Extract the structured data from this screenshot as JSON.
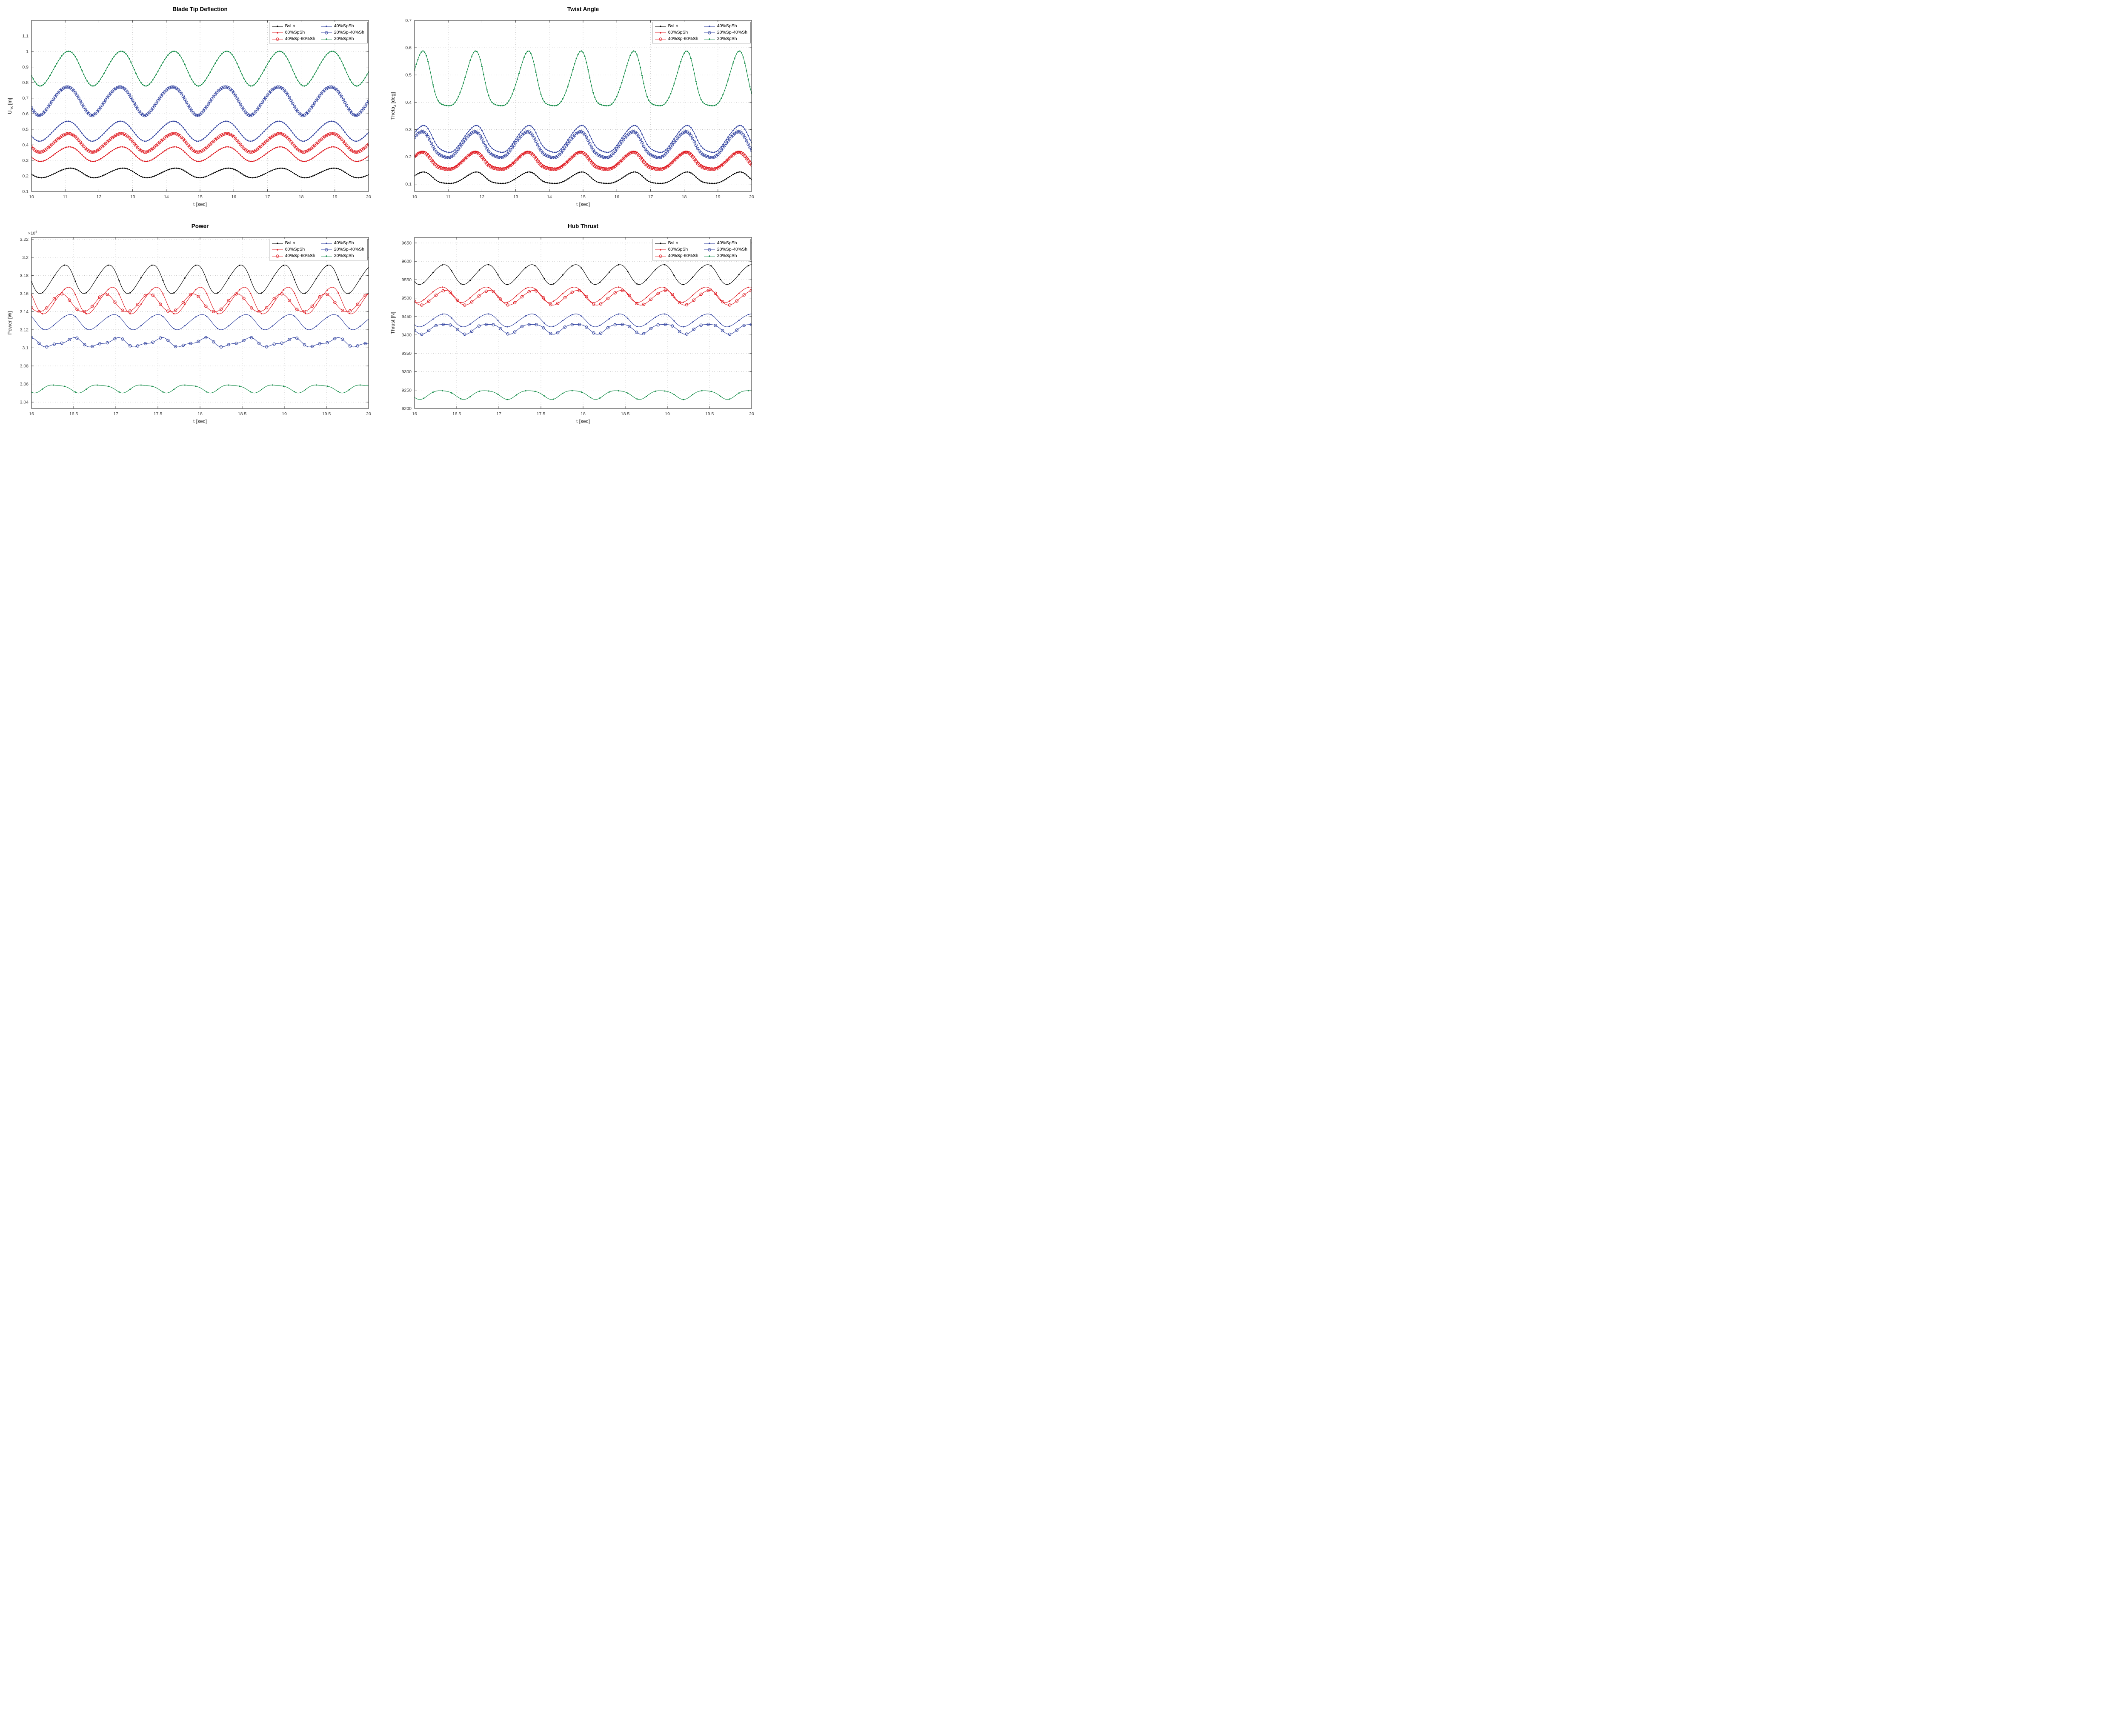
{
  "figure": {
    "background": "#ffffff"
  },
  "palette": {
    "black": "#000000",
    "red": "#e01b22",
    "blue": "#3142a0",
    "green": "#0f8a44"
  },
  "style": {
    "grid_color": "#b3b3b3",
    "axis_color": "#262626",
    "tick_label_color": "#3c3c3c",
    "legend_border": "#8c8c8c"
  },
  "legend_entries_column_major": [
    "BsLn",
    "60%SpSh",
    "40%Sp-60%Sh",
    "40%SpSh",
    "20%Sp-40%Sh",
    "20%SpSh"
  ],
  "waveform_model": "Periodic series reconstructed as y(t) = trough + (peak-trough)*((1+cos(th'))/2)^sharp + ripple*cos(2*th + ripple_phase), where th = 2*pi*(t-t_peak)/period wrapped to [-pi,pi] and th' = th + skew*(1-cos(th)). trough/peak are the values read off the chart; t_peak is the time of a maximum; markers are drawn every marker_dt seconds.",
  "chart_data": [
    {
      "type": "line",
      "title": "Blade Tip Deflection",
      "xlabel": "t [sec]",
      "ylabel": {
        "pre": "U",
        "sub": "hx",
        "post": " [m]"
      },
      "xlim": [
        10,
        20
      ],
      "ylim": [
        0.1,
        1.2
      ],
      "xticks": [
        10,
        11,
        12,
        13,
        14,
        15,
        16,
        17,
        18,
        19,
        20
      ],
      "xtick_labels": [
        "10",
        "11",
        "12",
        "13",
        "14",
        "15",
        "16",
        "17",
        "18",
        "19",
        "20"
      ],
      "yticks": [
        0.1,
        0.2,
        0.3,
        0.4,
        0.5,
        0.6,
        0.7,
        0.8,
        0.9,
        1.0,
        1.1
      ],
      "ytick_labels": [
        "0.1",
        "0.2",
        "0.3",
        "0.4",
        "0.5",
        "0.6",
        "0.7",
        "0.8",
        "0.9",
        "1",
        "1.1"
      ],
      "multiplier": null,
      "grid": true,
      "legend_location": "northeast",
      "series": [
        {
          "name": "BsLn",
          "color": "black",
          "marker": "dot",
          "marker_dt": 0.05,
          "period": 1.565,
          "t_peak": 11.15,
          "trough": 0.188,
          "peak": 0.25,
          "sharp": 1.0,
          "skew": 0.15,
          "ripple": 0,
          "ripple_phase": 0
        },
        {
          "name": "60%SpSh",
          "color": "red",
          "marker": "dot",
          "marker_dt": 0.05,
          "period": 1.565,
          "t_peak": 11.12,
          "trough": 0.293,
          "peak": 0.387,
          "sharp": 1.0,
          "skew": 0.15,
          "ripple": 0,
          "ripple_phase": 0
        },
        {
          "name": "40%Sp-60%Sh",
          "color": "red",
          "marker": "circle",
          "marker_dt": 0.05,
          "period": 1.565,
          "t_peak": 11.1,
          "trough": 0.353,
          "peak": 0.472,
          "sharp": 0.95,
          "skew": 0.15,
          "ripple": 0,
          "ripple_phase": 0
        },
        {
          "name": "40%SpSh",
          "color": "blue",
          "marker": "dot",
          "marker_dt": 0.05,
          "period": 1.565,
          "t_peak": 11.08,
          "trough": 0.423,
          "peak": 0.552,
          "sharp": 0.95,
          "skew": 0.12,
          "ripple": 0,
          "ripple_phase": 0
        },
        {
          "name": "20%Sp-40%Sh",
          "color": "blue",
          "marker": "circle",
          "marker_dt": 0.05,
          "period": 1.565,
          "t_peak": 11.06,
          "trough": 0.588,
          "peak": 0.772,
          "sharp": 0.85,
          "skew": 0.1,
          "ripple": 0,
          "ripple_phase": 0
        },
        {
          "name": "20%SpSh",
          "color": "green",
          "marker": "dot",
          "marker_dt": 0.05,
          "period": 1.565,
          "t_peak": 11.1,
          "trough": 0.778,
          "peak": 1.002,
          "sharp": 0.95,
          "skew": 0.12,
          "ripple": 0,
          "ripple_phase": 0
        }
      ]
    },
    {
      "type": "line",
      "title": "Twist Angle",
      "xlabel": "t [sec]",
      "ylabel": {
        "pre": "Theta",
        "sub": "z",
        "post": " [deg]"
      },
      "xlim": [
        10,
        20
      ],
      "ylim": [
        0.073,
        0.7
      ],
      "xticks": [
        10,
        11,
        12,
        13,
        14,
        15,
        16,
        17,
        18,
        19,
        20
      ],
      "xtick_labels": [
        "10",
        "11",
        "12",
        "13",
        "14",
        "15",
        "16",
        "17",
        "18",
        "19",
        "20"
      ],
      "yticks": [
        0.1,
        0.2,
        0.3,
        0.4,
        0.5,
        0.6,
        0.7
      ],
      "ytick_labels": [
        "0.1",
        "0.2",
        "0.3",
        "0.4",
        "0.5",
        "0.6",
        "0.7"
      ],
      "multiplier": null,
      "grid": true,
      "legend_location": "northeast",
      "series": [
        {
          "name": "BsLn",
          "color": "black",
          "marker": "dot",
          "marker_dt": 0.05,
          "period": 1.5645,
          "t_peak": 10.27,
          "trough": 0.104,
          "peak": 0.146,
          "sharp": 2.0,
          "skew": 0.2,
          "ripple": 0.0015,
          "ripple_phase": 3.14
        },
        {
          "name": "60%SpSh",
          "color": "red",
          "marker": "dot",
          "marker_dt": 0.05,
          "period": 1.5645,
          "t_peak": 10.26,
          "trough": 0.162,
          "peak": 0.223,
          "sharp": 2.1,
          "skew": 0.2,
          "ripple": 0.003,
          "ripple_phase": 3.14
        },
        {
          "name": "40%Sp-60%Sh",
          "color": "red",
          "marker": "circle",
          "marker_dt": 0.05,
          "period": 1.5645,
          "t_peak": 10.23,
          "trough": 0.157,
          "peak": 0.22,
          "sharp": 2.1,
          "skew": 0.2,
          "ripple": 0.003,
          "ripple_phase": 3.14
        },
        {
          "name": "40%SpSh",
          "color": "blue",
          "marker": "dot",
          "marker_dt": 0.05,
          "period": 1.5645,
          "t_peak": 10.27,
          "trough": 0.222,
          "peak": 0.321,
          "sharp": 2.0,
          "skew": 0.25,
          "ripple": 0.006,
          "ripple_phase": 3.14
        },
        {
          "name": "20%Sp-40%Sh",
          "color": "blue",
          "marker": "circle",
          "marker_dt": 0.05,
          "period": 1.5645,
          "t_peak": 10.23,
          "trough": 0.203,
          "peak": 0.298,
          "sharp": 2.0,
          "skew": 0.25,
          "ripple": 0.006,
          "ripple_phase": 3.14
        },
        {
          "name": "20%SpSh",
          "color": "green",
          "marker": "dot",
          "marker_dt": 0.05,
          "period": 1.5645,
          "t_peak": 10.25,
          "trough": 0.391,
          "peak": 0.592,
          "sharp": 2.2,
          "skew": 0.2,
          "ripple": 0.004,
          "ripple_phase": 3.14
        }
      ]
    },
    {
      "type": "line",
      "title": "Power",
      "xlabel": "t [sec]",
      "ylabel": {
        "pre": "Power [W]",
        "sub": "",
        "post": ""
      },
      "y_unit_multiplier": "1e4",
      "xlim": [
        16,
        20
      ],
      "ylim": [
        3.033,
        3.222
      ],
      "xticks": [
        16,
        16.5,
        17,
        17.5,
        18,
        18.5,
        19,
        19.5,
        20
      ],
      "xtick_labels": [
        "16",
        "16.5",
        "17",
        "17.5",
        "18",
        "18.5",
        "19",
        "19.5",
        "20"
      ],
      "yticks": [
        3.04,
        3.06,
        3.08,
        3.1,
        3.12,
        3.14,
        3.16,
        3.18,
        3.2,
        3.22
      ],
      "ytick_labels": [
        "3.04",
        "3.06",
        "3.08",
        "3.1",
        "3.12",
        "3.14",
        "3.16",
        "3.18",
        "3.2",
        "3.22"
      ],
      "multiplier": {
        "base": "×10",
        "exp": "4"
      },
      "grid": true,
      "legend_location": "northeast",
      "series": [
        {
          "name": "BsLn",
          "color": "black",
          "marker": "dot",
          "marker_dt": 0.13,
          "period": 0.5215,
          "t_peak": 16.4,
          "trough": 3.16,
          "peak": 3.1915,
          "sharp": 1.05,
          "skew": 0.25,
          "ripple": 0,
          "ripple_phase": 0
        },
        {
          "name": "60%SpSh",
          "color": "red",
          "marker": "dot",
          "marker_dt": 0.13,
          "period": 0.5215,
          "t_peak": 16.44,
          "trough": 3.1375,
          "peak": 3.167,
          "sharp": 1.05,
          "skew": 0.25,
          "ripple": 0,
          "ripple_phase": 0
        },
        {
          "name": "40%Sp-60%Sh",
          "color": "red",
          "marker": "circle",
          "marker_dt": 0.09,
          "period": 0.5215,
          "t_peak": 16.37,
          "trough": 3.139,
          "peak": 3.159,
          "sharp": 1.0,
          "skew": 0.2,
          "ripple": 0.0012,
          "ripple_phase": 1.2
        },
        {
          "name": "40%SpSh",
          "color": "blue",
          "marker": "dot",
          "marker_dt": 0.13,
          "period": 0.5215,
          "t_peak": 16.46,
          "trough": 3.12,
          "peak": 3.1368,
          "sharp": 1.0,
          "skew": 0.22,
          "ripple": 0,
          "ripple_phase": 0
        },
        {
          "name": "20%Sp-40%Sh",
          "color": "blue",
          "marker": "circle",
          "marker_dt": 0.09,
          "period": 0.5215,
          "t_peak": 16.49,
          "trough": 3.1015,
          "peak": 3.11,
          "sharp": 1.0,
          "skew": 0.1,
          "ripple": 0.0016,
          "ripple_phase": -0.9
        },
        {
          "name": "20%SpSh",
          "color": "green",
          "marker": "dot",
          "marker_dt": 0.13,
          "period": 0.5215,
          "t_peak": 16.3,
          "trough": 3.051,
          "peak": 3.0595,
          "sharp": 0.9,
          "skew": 0.1,
          "ripple": -0.0011,
          "ripple_phase": -0.4
        }
      ]
    },
    {
      "type": "line",
      "title": "Hub Thrust",
      "xlabel": "t [sec]",
      "ylabel": {
        "pre": "Thrust [N]",
        "sub": "",
        "post": ""
      },
      "xlim": [
        16,
        20
      ],
      "ylim": [
        9200,
        9665
      ],
      "xticks": [
        16,
        16.5,
        17,
        17.5,
        18,
        18.5,
        19,
        19.5,
        20
      ],
      "xtick_labels": [
        "16",
        "16.5",
        "17",
        "17.5",
        "18",
        "18.5",
        "19",
        "19.5",
        "20"
      ],
      "yticks": [
        9200,
        9250,
        9300,
        9350,
        9400,
        9450,
        9500,
        9550,
        9600,
        9650
      ],
      "ytick_labels": [
        "9200",
        "9250",
        "9300",
        "9350",
        "9400",
        "9450",
        "9500",
        "9550",
        "9600",
        "9650"
      ],
      "multiplier": null,
      "grid": true,
      "legend_location": "northeast",
      "series": [
        {
          "name": "BsLn",
          "color": "black",
          "marker": "dot",
          "marker_dt": 0.11,
          "period": 0.5215,
          "t_peak": 16.35,
          "trough": 9537,
          "peak": 9591,
          "sharp": 1.0,
          "skew": 0.2,
          "ripple": 0,
          "ripple_phase": 0
        },
        {
          "name": "60%SpSh",
          "color": "red",
          "marker": "dot",
          "marker_dt": 0.11,
          "period": 0.5215,
          "t_peak": 16.33,
          "trough": 9488,
          "peak": 9530,
          "sharp": 1.0,
          "skew": 0.2,
          "ripple": 0,
          "ripple_phase": 0
        },
        {
          "name": "40%Sp-60%Sh",
          "color": "red",
          "marker": "circle",
          "marker_dt": 0.085,
          "period": 0.5215,
          "t_peak": 16.37,
          "trough": 9481,
          "peak": 9521,
          "sharp": 1.0,
          "skew": 0.2,
          "ripple": 0,
          "ripple_phase": 0
        },
        {
          "name": "40%SpSh",
          "color": "blue",
          "marker": "dot",
          "marker_dt": 0.11,
          "period": 0.5215,
          "t_peak": 16.35,
          "trough": 9422,
          "peak": 9457,
          "sharp": 1.0,
          "skew": 0.2,
          "ripple": 0,
          "ripple_phase": 0
        },
        {
          "name": "20%Sp-40%Sh",
          "color": "blue",
          "marker": "circle",
          "marker_dt": 0.085,
          "period": 0.5215,
          "t_peak": 16.36,
          "trough": 9404,
          "peak": 9431,
          "sharp": 0.95,
          "skew": 0.15,
          "ripple": -2.5,
          "ripple_phase": 0
        },
        {
          "name": "20%SpSh",
          "color": "green",
          "marker": "dot",
          "marker_dt": 0.11,
          "period": 0.5215,
          "t_peak": 16.33,
          "trough": 9226,
          "peak": 9250,
          "sharp": 0.9,
          "skew": 0.1,
          "ripple": -2,
          "ripple_phase": -0.3
        }
      ]
    }
  ]
}
